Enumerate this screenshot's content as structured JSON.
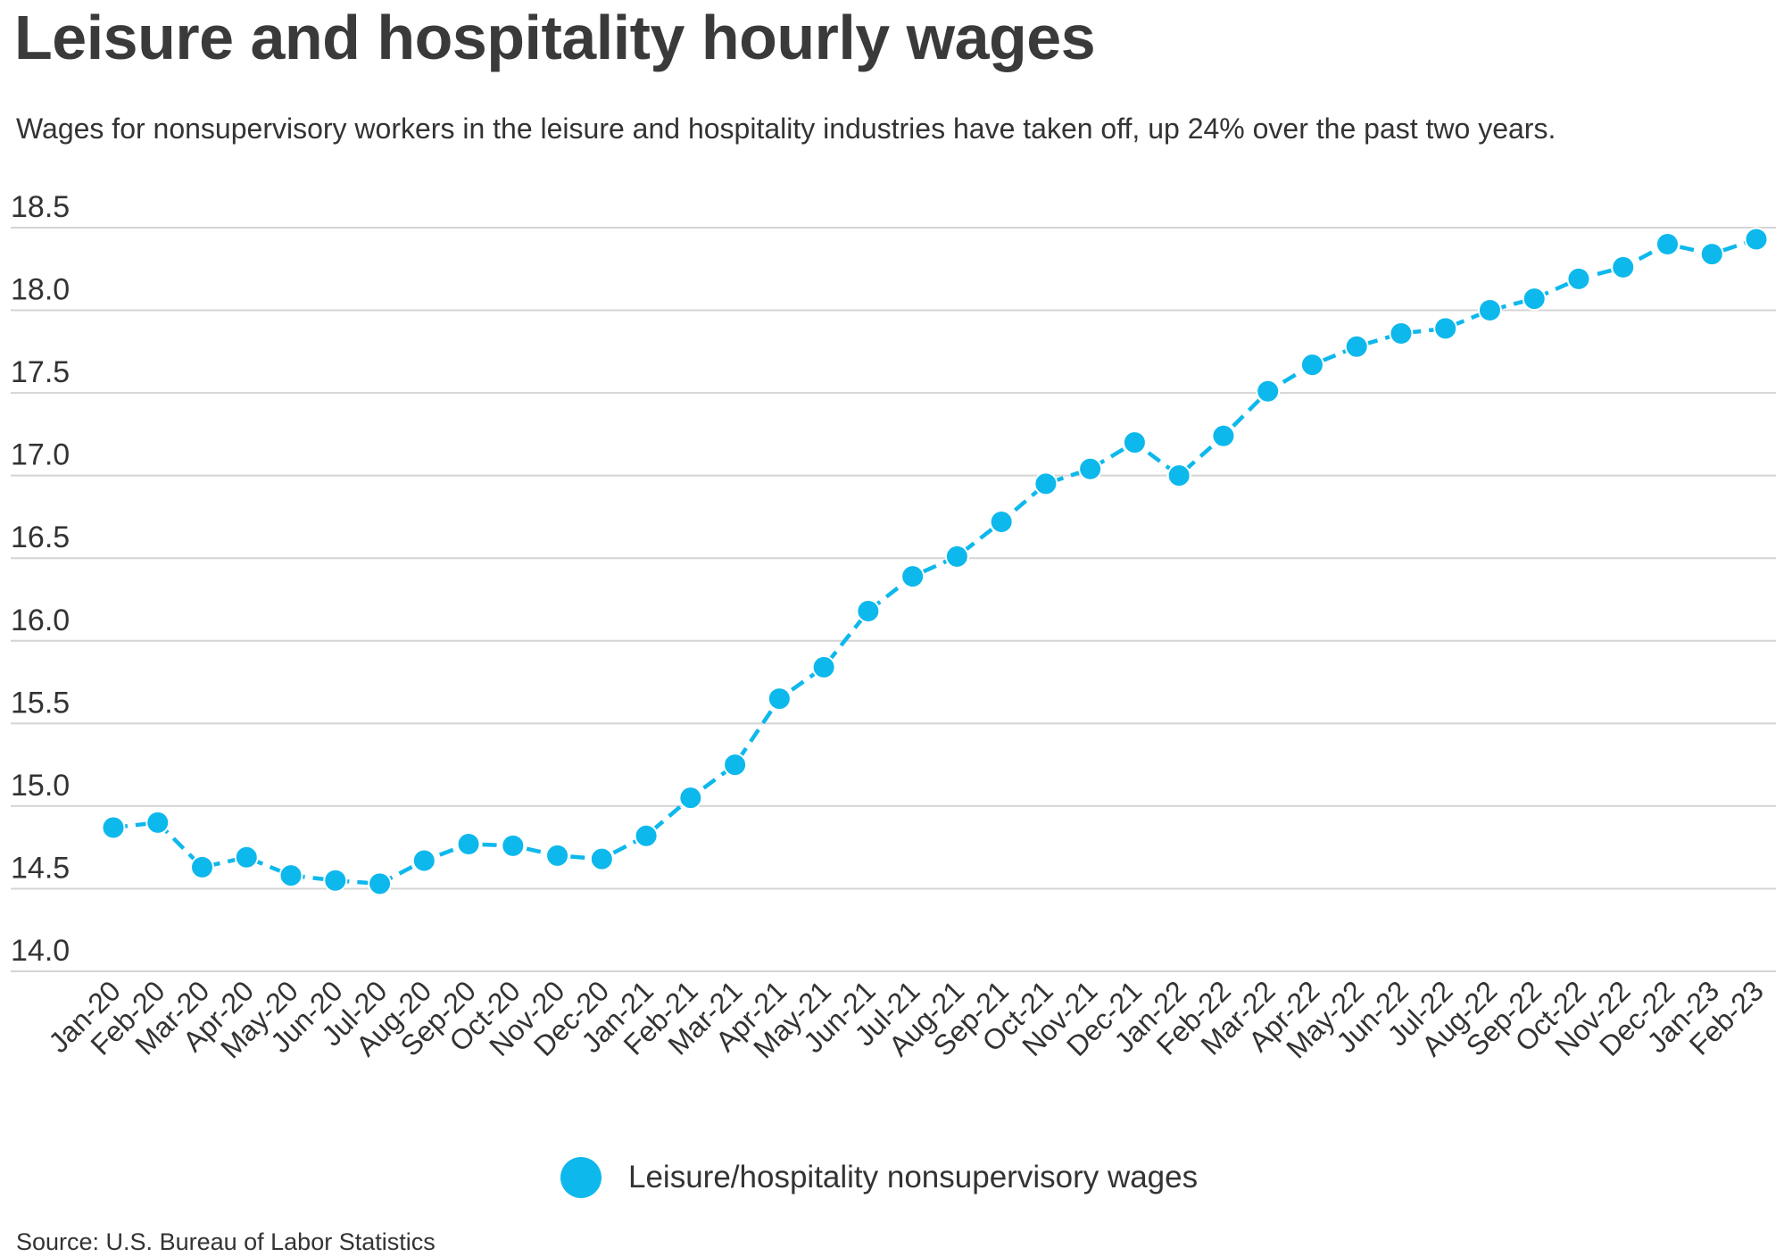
{
  "chart_data": {
    "type": "line",
    "title": "Leisure and hospitality hourly wages",
    "subtitle": "Wages for nonsupervisory workers in the leisure and hospitality industries have taken off, up 24% over the past two years.",
    "source": "Source: U.S. Bureau of Labor Statistics",
    "xlabel": "",
    "ylabel": "",
    "ylim": [
      14.0,
      18.5
    ],
    "yticks": [
      "14.0",
      "14.5",
      "15.0",
      "15.5",
      "16.0",
      "16.5",
      "17.0",
      "17.5",
      "18.0",
      "18.5"
    ],
    "grid": true,
    "legend_position": "bottom",
    "line_color": "#0db8ec",
    "categories": [
      "Jan-20",
      "Feb-20",
      "Mar-20",
      "Apr-20",
      "May-20",
      "Jun-20",
      "Jul-20",
      "Aug-20",
      "Sep-20",
      "Oct-20",
      "Nov-20",
      "Dec-20",
      "Jan-21",
      "Feb-21",
      "Mar-21",
      "Apr-21",
      "May-21",
      "Jun-21",
      "Jul-21",
      "Aug-21",
      "Sep-21",
      "Oct-21",
      "Nov-21",
      "Dec-21",
      "Jan-22",
      "Feb-22",
      "Mar-22",
      "Apr-22",
      "May-22",
      "Jun-22",
      "Jul-22",
      "Aug-22",
      "Sep-22",
      "Oct-22",
      "Nov-22",
      "Dec-22",
      "Jan-23",
      "Feb-23"
    ],
    "series": [
      {
        "name": "Leisure/hospitality nonsupervisory wages",
        "values": [
          14.87,
          14.9,
          14.63,
          14.69,
          14.58,
          14.55,
          14.53,
          14.67,
          14.77,
          14.76,
          14.7,
          14.68,
          14.82,
          15.05,
          15.25,
          15.65,
          15.84,
          16.18,
          16.39,
          16.51,
          16.72,
          16.95,
          17.04,
          17.2,
          17.0,
          17.24,
          17.51,
          17.67,
          17.78,
          17.86,
          17.89,
          18.0,
          18.07,
          18.19,
          18.26,
          18.4,
          18.34,
          18.43
        ]
      }
    ]
  }
}
